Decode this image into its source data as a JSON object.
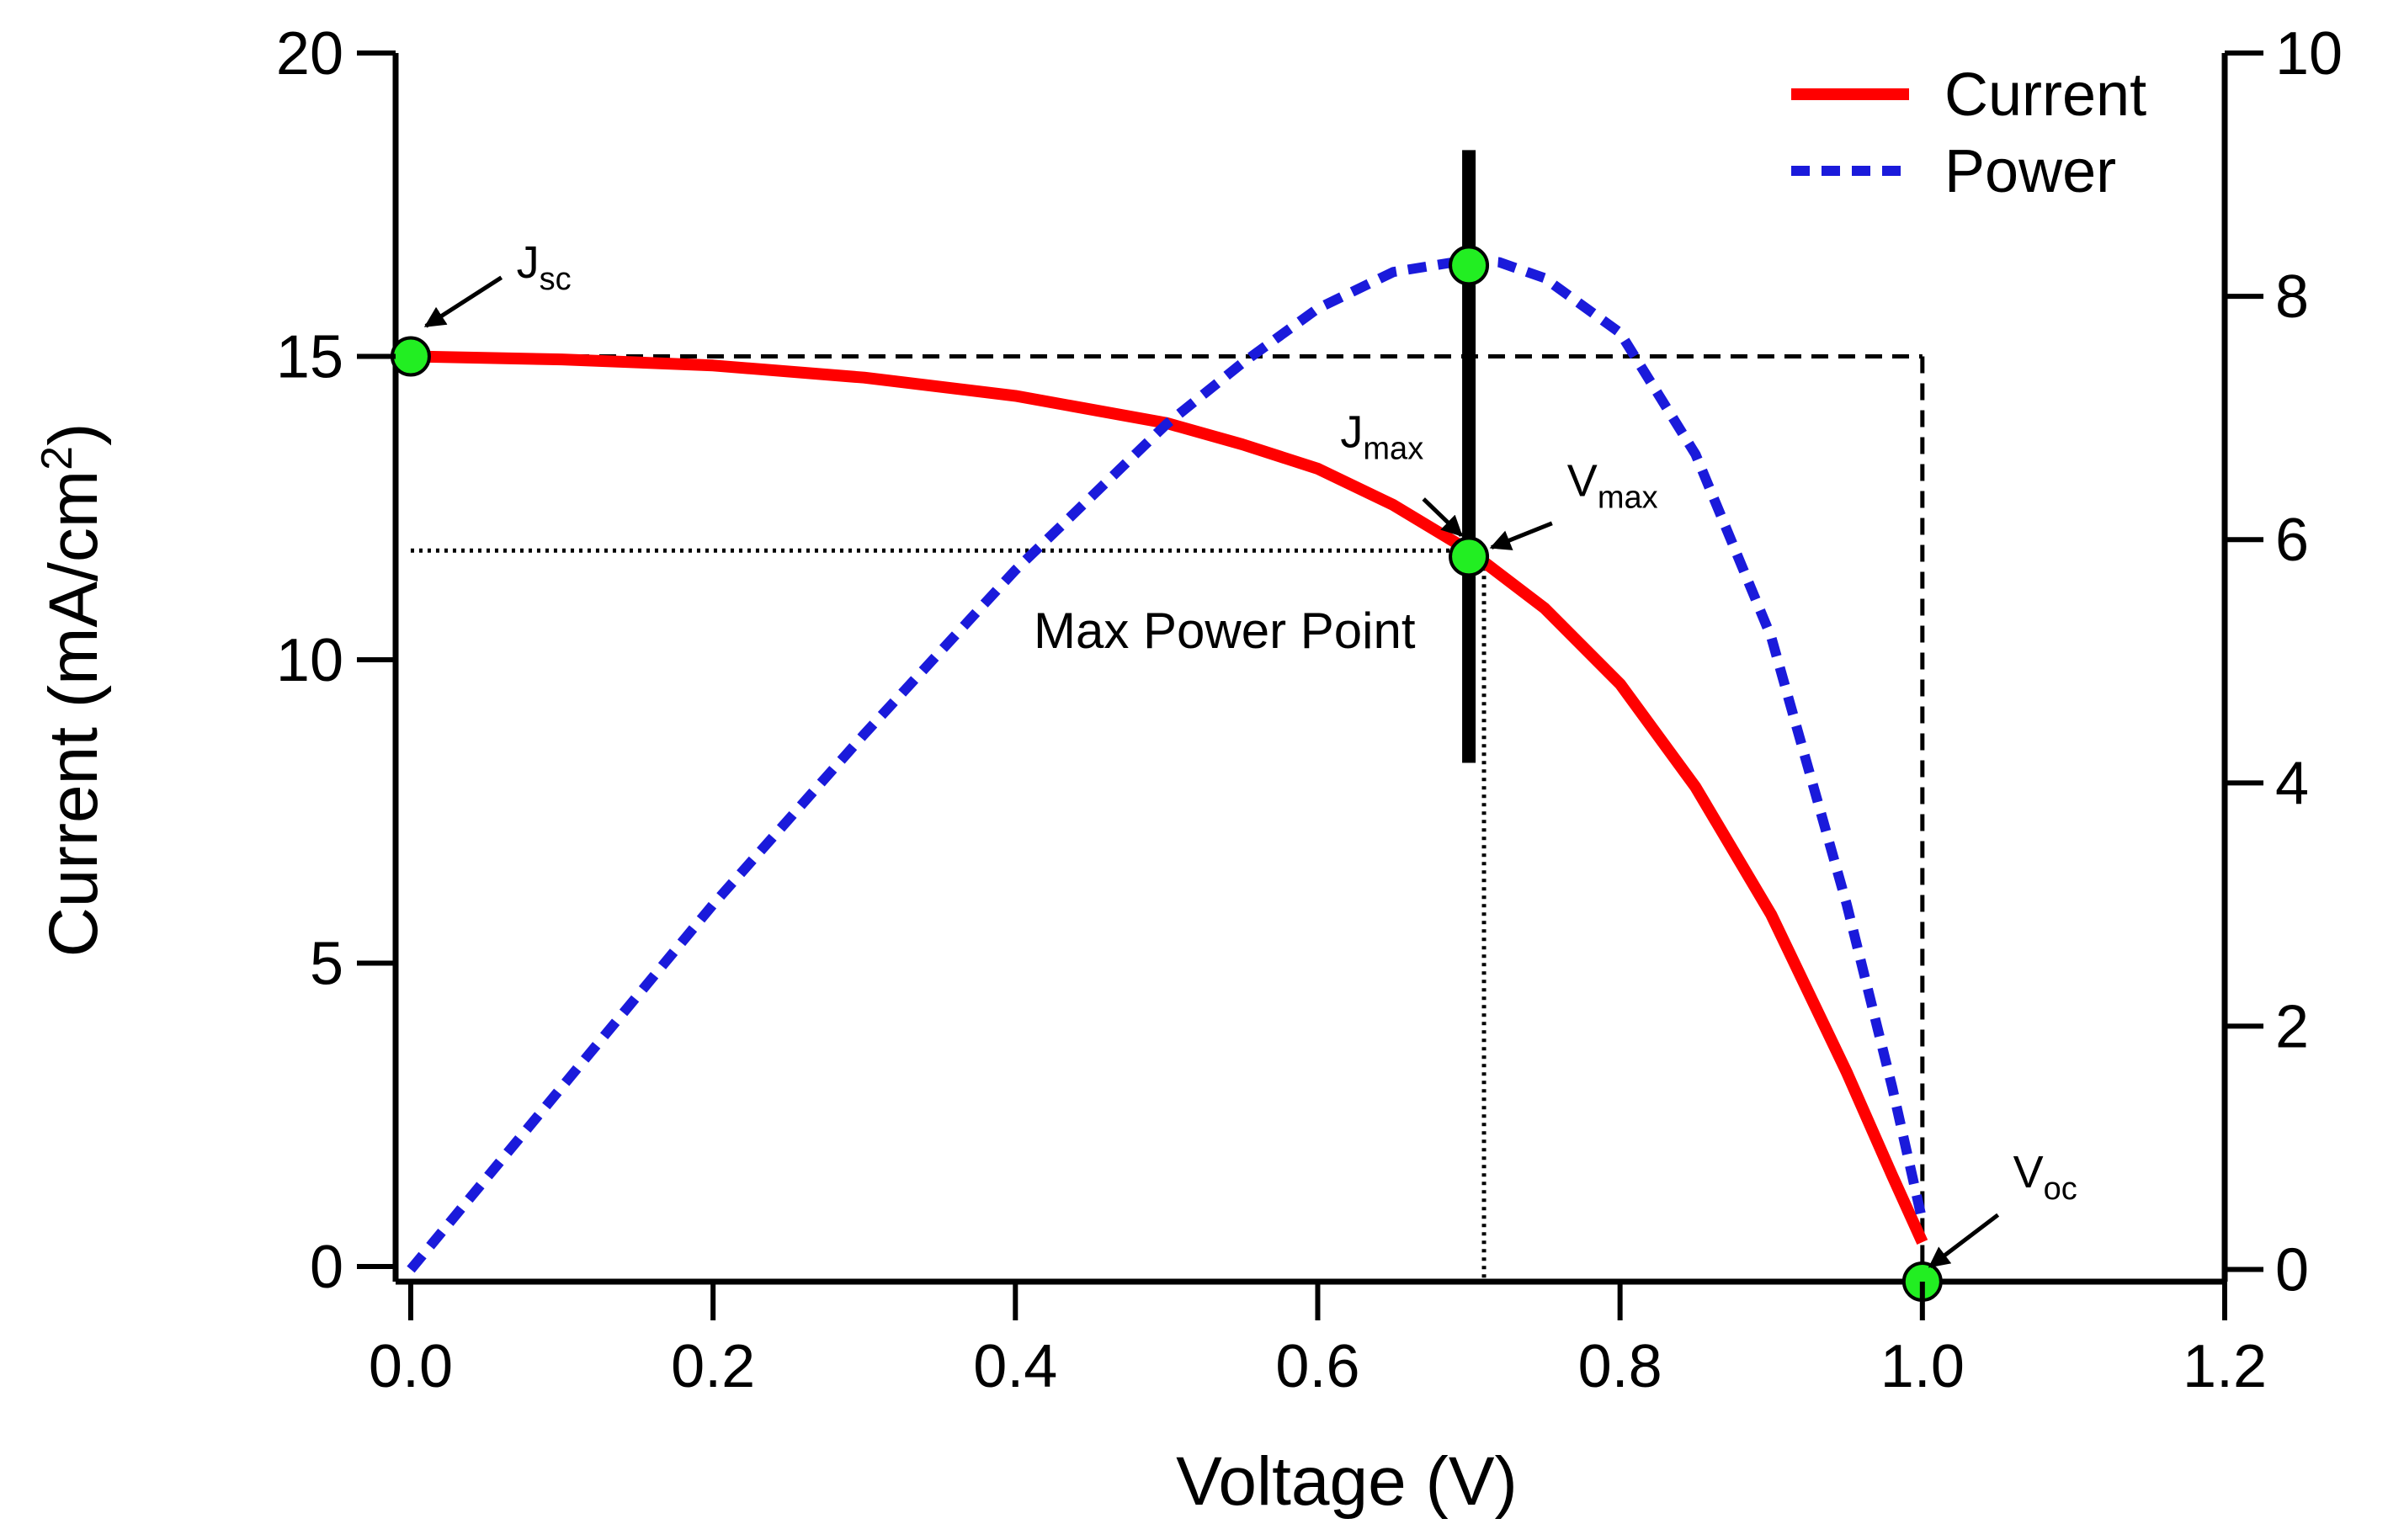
{
  "chart_data": {
    "type": "line",
    "title": "",
    "xlabel": "Voltage (V)",
    "ylabel_main": "Current (mA/cm",
    "ylabel_sup": "2",
    "ylabel_close": ")",
    "xlim": [
      -0.01,
      1.2
    ],
    "ylim": [
      -0.25,
      20
    ],
    "y2lim": [
      -0.1,
      10
    ],
    "x_ticks": [
      0.0,
      0.2,
      0.4,
      0.6,
      0.8,
      1.0,
      1.2
    ],
    "x_tick_labels": [
      "0.0",
      "0.2",
      "0.4",
      "0.6",
      "0.8",
      "1.0",
      "1.2"
    ],
    "y_ticks": [
      0,
      5,
      10,
      15,
      20
    ],
    "y_tick_labels": [
      "0",
      "5",
      "10",
      "15",
      "20"
    ],
    "y2_ticks": [
      0,
      2,
      4,
      6,
      8,
      10
    ],
    "y2_tick_labels": [
      "0",
      "2",
      "4",
      "6",
      "8",
      "10"
    ],
    "legend": [
      "Current",
      "Power"
    ],
    "legend_position": "top-right",
    "series": [
      {
        "name": "Current",
        "axis": "left",
        "color": "#ff0000",
        "style": "solid",
        "x": [
          0.0,
          0.1,
          0.2,
          0.3,
          0.4,
          0.5,
          0.55,
          0.6,
          0.65,
          0.7,
          0.75,
          0.8,
          0.85,
          0.9,
          0.95,
          0.98,
          1.0
        ],
        "y": [
          15.0,
          14.95,
          14.85,
          14.65,
          14.35,
          13.9,
          13.55,
          13.15,
          12.55,
          11.8,
          10.85,
          9.6,
          7.9,
          5.8,
          3.2,
          1.5,
          0.4
        ]
      },
      {
        "name": "Power",
        "axis": "right",
        "color": "#1a1adb",
        "style": "dashed",
        "x": [
          0.0,
          0.1,
          0.2,
          0.3,
          0.4,
          0.5,
          0.55,
          0.6,
          0.65,
          0.7,
          0.72,
          0.75,
          0.8,
          0.85,
          0.9,
          0.95,
          0.98,
          1.0
        ],
        "y": [
          0.0,
          1.5,
          3.0,
          4.4,
          5.75,
          6.95,
          7.45,
          7.9,
          8.2,
          8.3,
          8.28,
          8.15,
          7.7,
          6.7,
          5.2,
          3.0,
          1.5,
          0.4
        ]
      }
    ],
    "reference_lines": {
      "jsc_dashed_y": 15,
      "voc_dashed_x": 1.0,
      "jmax_dotted_y": 11.8,
      "vmax_dotted_x": 0.71,
      "mpp_bar_x": 0.7,
      "mpp_bar_y_top": 18.4,
      "mpp_bar_y_bottom": 8.3
    },
    "points": [
      {
        "name": "Jsc",
        "x": 0.0,
        "y": 15.0
      },
      {
        "name": "Pmax",
        "x": 0.7,
        "y": 16.5
      },
      {
        "name": "Max Power Point",
        "x": 0.7,
        "y": 11.7
      },
      {
        "name": "Voc",
        "x": 1.0,
        "y": -0.25
      }
    ],
    "annotations": [
      {
        "main": "J",
        "sub": "sc",
        "x": 0.07,
        "y": 16.3,
        "arrow_from": [
          0.06,
          16.3
        ],
        "arrow_to": [
          0.01,
          15.5
        ]
      },
      {
        "main": "J",
        "sub": "max",
        "x": 0.615,
        "y": 13.5,
        "arrow_from": [
          0.67,
          12.65
        ],
        "arrow_to": [
          0.695,
          12.05
        ]
      },
      {
        "main": "V",
        "sub": "max",
        "x": 0.765,
        "y": 12.7,
        "arrow_from": [
          0.755,
          12.25
        ],
        "arrow_to": [
          0.715,
          11.85
        ]
      },
      {
        "main": "V",
        "sub": "oc",
        "x": 1.06,
        "y": 1.3,
        "arrow_from": [
          1.05,
          0.85
        ],
        "arrow_to": [
          1.005,
          0.0
        ]
      }
    ],
    "mpp_label": "Max Power Point",
    "point_color": "#22ee22"
  }
}
